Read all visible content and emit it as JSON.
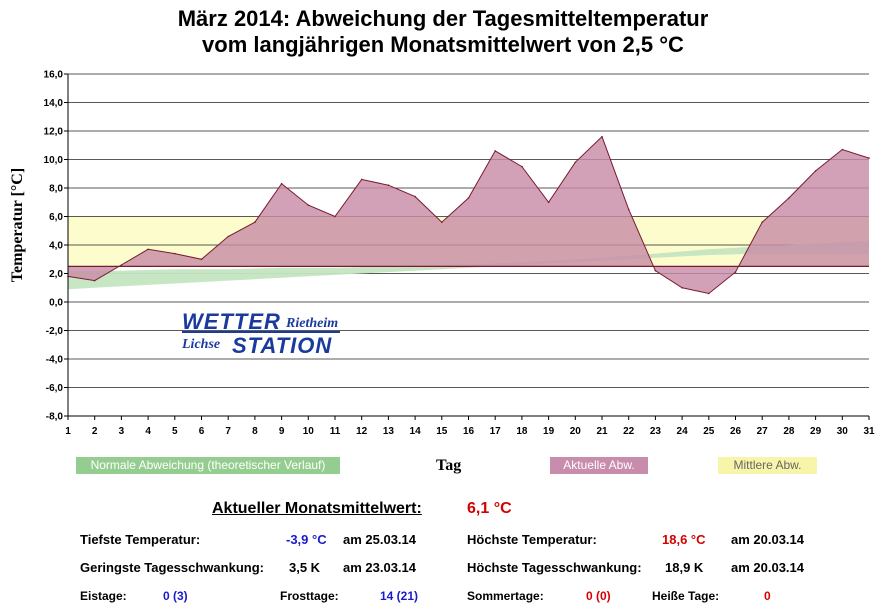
{
  "title_line1": "März 2014: Abweichung der Tagesmitteltemperatur",
  "title_line2": "vom langjährigen Monatsmittelwert von 2,5 °C",
  "chart_data": {
    "type": "area",
    "title": "März 2014: Abweichung der Tagesmitteltemperatur vom langjährigen Monatsmittelwert von 2,5 °C",
    "xlabel": "Tag",
    "ylabel": "Temperatur [°C]",
    "ylim": [
      -8,
      16
    ],
    "xlim": [
      1,
      31
    ],
    "y_ticks": [
      "-8,0",
      "-6,0",
      "-4,0",
      "-2,0",
      "0,0",
      "2,0",
      "4,0",
      "6,0",
      "8,0",
      "10,0",
      "12,0",
      "14,0",
      "16,0"
    ],
    "x_ticks": [
      "1",
      "2",
      "3",
      "4",
      "5",
      "6",
      "7",
      "8",
      "9",
      "10",
      "11",
      "12",
      "13",
      "14",
      "15",
      "16",
      "17",
      "18",
      "19",
      "20",
      "21",
      "22",
      "23",
      "24",
      "25",
      "26",
      "27",
      "28",
      "29",
      "30",
      "31"
    ],
    "baseline": 2.5,
    "mean_band": [
      2.5,
      6.0
    ],
    "series": [
      {
        "name": "Aktuelle Abw.",
        "color": "#b0607e",
        "x": [
          1,
          2,
          3,
          4,
          5,
          6,
          7,
          8,
          9,
          10,
          11,
          12,
          13,
          14,
          15,
          16,
          17,
          18,
          19,
          20,
          21,
          22,
          23,
          24,
          25,
          26,
          27,
          28,
          29,
          30,
          31
        ],
        "values": [
          1.8,
          1.5,
          2.6,
          3.7,
          3.4,
          3.0,
          4.6,
          5.6,
          8.3,
          6.8,
          6.0,
          8.6,
          8.2,
          7.4,
          5.6,
          7.3,
          10.6,
          9.5,
          7.0,
          9.8,
          11.6,
          6.5,
          2.2,
          1.0,
          0.6,
          2.1,
          5.6,
          7.3,
          9.2,
          10.7,
          10.1
        ]
      },
      {
        "name": "Normale Abweichung (theoretischer Verlauf)",
        "color": "#9fd49f",
        "x": [
          1,
          3,
          5,
          7,
          9,
          11,
          13,
          15,
          17,
          19,
          21,
          23,
          25,
          27,
          29,
          31
        ],
        "lower": [
          0.9,
          1.1,
          1.3,
          1.5,
          1.7,
          1.9,
          2.1,
          2.3,
          2.5,
          2.7,
          2.9,
          3.1,
          3.3,
          3.4,
          3.4,
          3.4
        ],
        "upper": [
          2.2,
          2.2,
          2.3,
          2.3,
          2.4,
          2.4,
          2.5,
          2.6,
          2.7,
          2.9,
          3.1,
          3.4,
          3.7,
          3.9,
          4.1,
          4.3
        ]
      },
      {
        "name": "Mittlere Abw.",
        "color": "#f9f5b0",
        "values": [
          6.0
        ]
      }
    ]
  },
  "legend": {
    "normal": "Normale Abweichung (theoretischer Verlauf)",
    "actual": "Aktuelle Abw.",
    "mean": "Mittlere Abw."
  },
  "colors": {
    "normal": "#95cd90",
    "actual": "#c88cac",
    "mean": "#f8f5aa",
    "band": "#fdfccc",
    "area": "#c88ca7",
    "line": "#7a1a2e"
  },
  "logo": {
    "top_word": "WETTER",
    "top_place": "Rietheim",
    "bottom_place": "Lichse",
    "bottom_word": "STATION"
  },
  "stats": {
    "monthly_mean_label": "Aktueller Monatsmittelwert:",
    "monthly_mean_value": "6,1 °C",
    "min_label": "Tiefste Temperatur:",
    "min_value": "-3,9 °C",
    "min_date": "am 25.03.14",
    "max_label": "Höchste Temperatur:",
    "max_value": "18,6 °C",
    "max_date": "am 20.03.14",
    "min_range_label": "Geringste Tagesschwankung:",
    "min_range_value": "3,5 K",
    "min_range_date": "am 23.03.14",
    "max_range_label": "Höchste Tagesschwankung:",
    "max_range_value": "18,9 K",
    "max_range_date": "am 20.03.14",
    "ice_label": "Eistage:",
    "ice_value": "0 (3)",
    "frost_label": "Frosttage:",
    "frost_value": "14 (21)",
    "summer_label": "Sommertage:",
    "summer_value": "0 (0)",
    "hot_label": "Heiße Tage:",
    "hot_value": "0"
  }
}
